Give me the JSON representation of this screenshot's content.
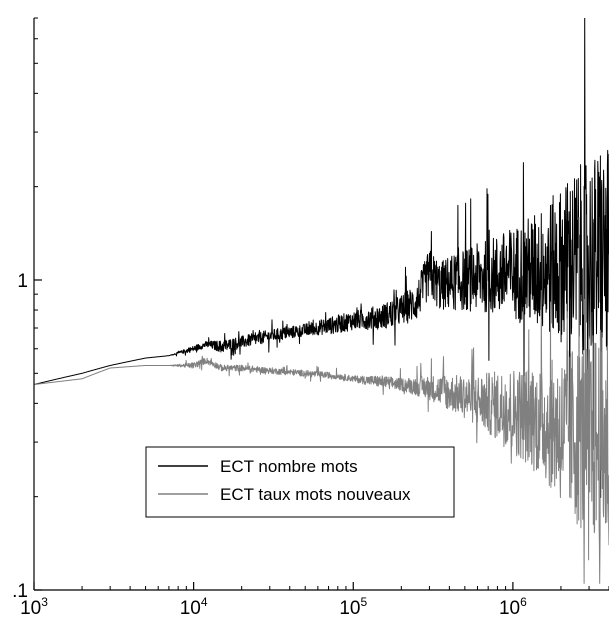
{
  "chart_data": {
    "type": "line",
    "title": "",
    "xlabel": "",
    "ylabel": "",
    "xscale": "log",
    "yscale": "log",
    "xlim": [
      1000,
      4000000
    ],
    "ylim": [
      0.1,
      7
    ],
    "grid": false,
    "legend_position": "lower-left",
    "x_ticks": [
      {
        "value": 1000,
        "base": "10",
        "exp": "3"
      },
      {
        "value": 10000,
        "base": "10",
        "exp": "4"
      },
      {
        "value": 100000,
        "base": "10",
        "exp": "5"
      },
      {
        "value": 1000000,
        "base": "10",
        "exp": "6"
      }
    ],
    "y_ticks": [
      {
        "value": 1,
        "label": "1"
      },
      {
        "value": 0.1,
        "label": ".1"
      }
    ],
    "series": [
      {
        "name": "ECT nombre mots",
        "color": "#000000",
        "x": [
          1000,
          2000,
          3000,
          5000,
          7000,
          10000,
          12000,
          15000,
          20000,
          30000,
          50000,
          80000,
          100000,
          150000,
          200000,
          250000,
          300000,
          350000,
          400000,
          500000,
          700000,
          1000000,
          1500000,
          2000000,
          2500000,
          3000000,
          4000000
        ],
        "y": [
          0.46,
          0.5,
          0.53,
          0.56,
          0.57,
          0.6,
          0.62,
          0.61,
          0.63,
          0.66,
          0.69,
          0.72,
          0.74,
          0.76,
          0.8,
          0.85,
          1.05,
          0.95,
          0.98,
          1.0,
          1.03,
          1.05,
          1.08,
          1.12,
          1.15,
          1.2,
          1.18
        ],
        "noise": [
          0,
          0,
          0,
          0,
          0,
          0.01,
          0.01,
          0.02,
          0.02,
          0.02,
          0.02,
          0.03,
          0.03,
          0.04,
          0.05,
          0.06,
          0.08,
          0.08,
          0.09,
          0.1,
          0.12,
          0.15,
          0.2,
          0.25,
          0.3,
          0.32,
          0.35
        ]
      },
      {
        "name": "ECT taux mots nouveaux",
        "color": "#808080",
        "x": [
          1000,
          2000,
          3000,
          5000,
          7000,
          10000,
          12000,
          15000,
          20000,
          30000,
          50000,
          80000,
          100000,
          150000,
          200000,
          300000,
          500000,
          700000,
          1000000,
          1500000,
          2000000,
          2500000,
          3000000,
          4000000
        ],
        "y": [
          0.46,
          0.48,
          0.52,
          0.53,
          0.53,
          0.53,
          0.55,
          0.52,
          0.52,
          0.51,
          0.5,
          0.49,
          0.48,
          0.47,
          0.46,
          0.45,
          0.42,
          0.4,
          0.38,
          0.35,
          0.33,
          0.32,
          0.31,
          0.3
        ],
        "noise": [
          0,
          0,
          0,
          0,
          0,
          0.01,
          0.01,
          0.01,
          0.01,
          0.01,
          0.01,
          0.01,
          0.01,
          0.02,
          0.02,
          0.04,
          0.07,
          0.1,
          0.14,
          0.18,
          0.24,
          0.3,
          0.34,
          0.38
        ]
      }
    ]
  }
}
